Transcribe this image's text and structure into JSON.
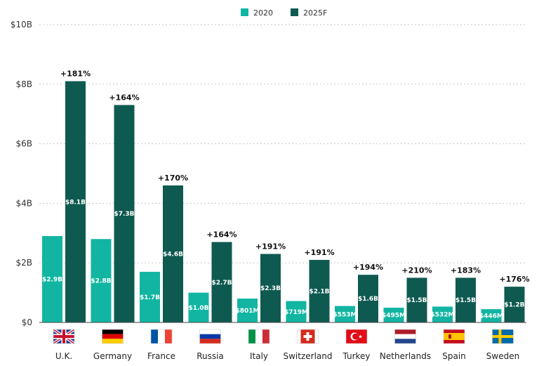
{
  "chart_data": {
    "type": "bar",
    "title": "",
    "xlabel": "",
    "ylabel": "",
    "ylim": [
      0,
      10
    ],
    "y_unit": "billion USD",
    "yticks": [
      "$0",
      "$2B",
      "$4B",
      "$6B",
      "$8B",
      "$10B"
    ],
    "grid": true,
    "legend_position": "top-center",
    "categories": [
      "U.K.",
      "Germany",
      "France",
      "Russia",
      "Italy",
      "Switzerland",
      "Turkey",
      "Netherlands",
      "Spain",
      "Sweden"
    ],
    "series": [
      {
        "name": "2020",
        "color": "#12b5a2",
        "values": [
          2.9,
          2.8,
          1.7,
          1.0,
          0.801,
          0.719,
          0.553,
          0.495,
          0.532,
          0.446
        ],
        "labels": [
          "$2.9B",
          "$2.8B",
          "$1.7B",
          "$1.0B",
          "$801M",
          "$719M",
          "$553M",
          "$495M",
          "$532M",
          "$446M"
        ]
      },
      {
        "name": "2025F",
        "color": "#0f5a50",
        "values": [
          8.1,
          7.3,
          4.6,
          2.7,
          2.3,
          2.1,
          1.6,
          1.5,
          1.5,
          1.2
        ],
        "labels": [
          "$8.1B",
          "$7.3B",
          "$4.6B",
          "$2.7B",
          "$2.3B",
          "$2.1B",
          "$1.6B",
          "$1.5B",
          "$1.5B",
          "$1.2B"
        ]
      }
    ],
    "growth_labels": [
      "+181%",
      "+164%",
      "+170%",
      "+164%",
      "+191%",
      "+191%",
      "+194%",
      "+210%",
      "+183%",
      "+176%"
    ],
    "flags": [
      "uk-flag-icon",
      "germany-flag-icon",
      "france-flag-icon",
      "russia-flag-icon",
      "italy-flag-icon",
      "switzerland-flag-icon",
      "turkey-flag-icon",
      "netherlands-flag-icon",
      "spain-flag-icon",
      "sweden-flag-icon"
    ]
  }
}
